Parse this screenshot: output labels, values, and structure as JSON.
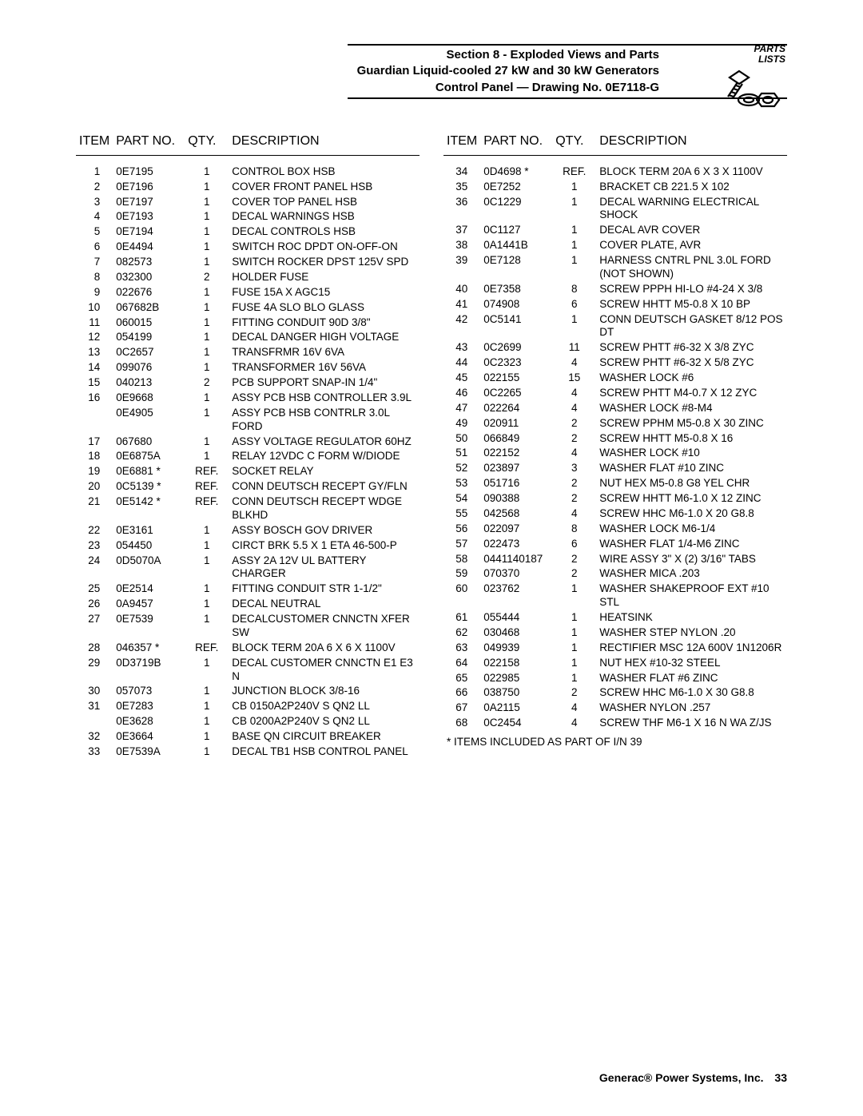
{
  "header": {
    "section": "Section 8 - Exploded Views and Parts",
    "product": "Guardian Liquid-cooled 27 kW and 30 kW Generators",
    "drawing": "Control Panel — Drawing No. 0E7118-G",
    "icon_line1": "PARTS",
    "icon_line2": "LISTS"
  },
  "columns": {
    "item": "ITEM",
    "part": "PART NO.",
    "qty": "QTY.",
    "desc": "DESCRIPTION"
  },
  "left_rows": [
    {
      "item": "1",
      "part": "0E7195",
      "qty": "1",
      "desc": "CONTROL BOX HSB"
    },
    {
      "item": "2",
      "part": "0E7196",
      "qty": "1",
      "desc": "COVER FRONT PANEL HSB"
    },
    {
      "item": "3",
      "part": "0E7197",
      "qty": "1",
      "desc": "COVER TOP PANEL HSB"
    },
    {
      "item": "4",
      "part": "0E7193",
      "qty": "1",
      "desc": "DECAL WARNINGS HSB"
    },
    {
      "item": "5",
      "part": "0E7194",
      "qty": "1",
      "desc": "DECAL CONTROLS HSB"
    },
    {
      "item": "6",
      "part": "0E4494",
      "qty": "1",
      "desc": "SWITCH ROC DPDT ON-OFF-ON"
    },
    {
      "item": "7",
      "part": "082573",
      "qty": "1",
      "desc": "SWITCH ROCKER DPST 125V SPD"
    },
    {
      "item": "8",
      "part": "032300",
      "qty": "2",
      "desc": "HOLDER FUSE"
    },
    {
      "item": "9",
      "part": "022676",
      "qty": "1",
      "desc": "FUSE 15A X AGC15"
    },
    {
      "item": "10",
      "part": "067682B",
      "qty": "1",
      "desc": "FUSE 4A SLO BLO GLASS"
    },
    {
      "item": "11",
      "part": "060015",
      "qty": "1",
      "desc": "FITTING CONDUIT 90D 3/8\""
    },
    {
      "item": "12",
      "part": "054199",
      "qty": "1",
      "desc": "DECAL DANGER HIGH VOLTAGE"
    },
    {
      "item": "13",
      "part": "0C2657",
      "qty": "1",
      "desc": "TRANSFRMR 16V 6VA"
    },
    {
      "item": "14",
      "part": "099076",
      "qty": "1",
      "desc": "TRANSFORMER 16V 56VA"
    },
    {
      "item": "15",
      "part": "040213",
      "qty": "2",
      "desc": "PCB SUPPORT SNAP-IN 1/4\""
    },
    {
      "item": "16",
      "part": "0E9668",
      "qty": "1",
      "desc": "ASSY PCB HSB CONTROLLER 3.9L"
    },
    {
      "item": "",
      "part": "0E4905",
      "qty": "1",
      "desc": "ASSY PCB HSB CONTRLR 3.0L FORD"
    },
    {
      "item": "17",
      "part": "067680",
      "qty": "1",
      "desc": "ASSY VOLTAGE REGULATOR 60HZ"
    },
    {
      "item": "18",
      "part": "0E6875A",
      "qty": "1",
      "desc": "RELAY 12VDC C FORM W/DIODE"
    },
    {
      "item": "19",
      "part": "0E6881 *",
      "qty": "REF.",
      "desc": "SOCKET RELAY"
    },
    {
      "item": "20",
      "part": "0C5139 *",
      "qty": "REF.",
      "desc": "CONN DEUTSCH RECEPT GY/FLN"
    },
    {
      "item": "21",
      "part": "0E5142 *",
      "qty": "REF.",
      "desc": "CONN DEUTSCH RECEPT WDGE BLKHD"
    },
    {
      "item": "22",
      "part": "0E3161",
      "qty": "1",
      "desc": "ASSY BOSCH GOV DRIVER"
    },
    {
      "item": "23",
      "part": "054450",
      "qty": "1",
      "desc": "CIRCT BRK 5.5 X 1 ETA 46-500-P"
    },
    {
      "item": "24",
      "part": "0D5070A",
      "qty": "1",
      "desc": "ASSY 2A 12V UL BATTERY CHARGER"
    },
    {
      "item": "25",
      "part": "0E2514",
      "qty": "1",
      "desc": "FITTING CONDUIT STR 1-1/2\""
    },
    {
      "item": "26",
      "part": "0A9457",
      "qty": "1",
      "desc": "DECAL NEUTRAL"
    },
    {
      "item": "27",
      "part": "0E7539",
      "qty": "1",
      "desc": "DECALCUSTOMER CNNCTN XFER SW"
    },
    {
      "item": "28",
      "part": "046357 *",
      "qty": "REF.",
      "desc": "BLOCK TERM 20A 6 X 6 X 1100V"
    },
    {
      "item": "29",
      "part": "0D3719B",
      "qty": "1",
      "desc": "DECAL CUSTOMER CNNCTN E1 E3 N"
    },
    {
      "item": "30",
      "part": "057073",
      "qty": "1",
      "desc": "JUNCTION BLOCK 3/8-16"
    },
    {
      "item": "31",
      "part": "0E7283",
      "qty": "1",
      "desc": "CB 0150A2P240V S QN2 LL"
    },
    {
      "item": "",
      "part": "0E3628",
      "qty": "1",
      "desc": "CB 0200A2P240V S QN2 LL"
    },
    {
      "item": "32",
      "part": "0E3664",
      "qty": "1",
      "desc": "BASE QN CIRCUIT BREAKER"
    },
    {
      "item": "33",
      "part": "0E7539A",
      "qty": "1",
      "desc": "DECAL TB1 HSB CONTROL PANEL"
    }
  ],
  "right_rows": [
    {
      "item": "34",
      "part": "0D4698 *",
      "qty": "REF.",
      "desc": "BLOCK TERM 20A 6 X 3 X 1100V"
    },
    {
      "item": "35",
      "part": "0E7252",
      "qty": "1",
      "desc": "BRACKET CB 221.5 X 102"
    },
    {
      "item": "36",
      "part": "0C1229",
      "qty": "1",
      "desc": "DECAL WARNING ELECTRICAL SHOCK"
    },
    {
      "item": "37",
      "part": "0C1127",
      "qty": "1",
      "desc": "DECAL AVR COVER"
    },
    {
      "item": "38",
      "part": "0A1441B",
      "qty": "1",
      "desc": "COVER PLATE, AVR"
    },
    {
      "item": "39",
      "part": "0E7128",
      "qty": "1",
      "desc": "HARNESS CNTRL PNL 3.0L FORD (NOT SHOWN)"
    },
    {
      "item": "40",
      "part": "0E7358",
      "qty": "8",
      "desc": "SCREW PPPH HI-LO #4-24 X 3/8"
    },
    {
      "item": "41",
      "part": "074908",
      "qty": "6",
      "desc": "SCREW HHTT M5-0.8 X 10 BP"
    },
    {
      "item": "42",
      "part": "0C5141",
      "qty": "1",
      "desc": "CONN DEUTSCH GASKET 8/12 POS DT"
    },
    {
      "item": "43",
      "part": "0C2699",
      "qty": "11",
      "desc": "SCREW PHTT #6-32 X 3/8 ZYC"
    },
    {
      "item": "44",
      "part": "0C2323",
      "qty": "4",
      "desc": "SCREW PHTT #6-32 X 5/8 ZYC"
    },
    {
      "item": "45",
      "part": "022155",
      "qty": "15",
      "desc": "WASHER LOCK #6"
    },
    {
      "item": "46",
      "part": "0C2265",
      "qty": "4",
      "desc": "SCREW PHTT M4-0.7 X 12 ZYC"
    },
    {
      "item": "47",
      "part": "022264",
      "qty": "4",
      "desc": "WASHER LOCK #8-M4"
    },
    {
      "item": "49",
      "part": "020911",
      "qty": "2",
      "desc": "SCREW PPHM M5-0.8 X 30 ZINC"
    },
    {
      "item": "50",
      "part": "066849",
      "qty": "2",
      "desc": "SCREW HHTT M5-0.8 X 16"
    },
    {
      "item": "51",
      "part": "022152",
      "qty": "4",
      "desc": "WASHER LOCK #10"
    },
    {
      "item": "52",
      "part": "023897",
      "qty": "3",
      "desc": "WASHER FLAT #10 ZINC"
    },
    {
      "item": "53",
      "part": "051716",
      "qty": "2",
      "desc": "NUT HEX M5-0.8 G8 YEL CHR"
    },
    {
      "item": "54",
      "part": "090388",
      "qty": "2",
      "desc": "SCREW HHTT M6-1.0 X 12 ZINC"
    },
    {
      "item": "55",
      "part": "042568",
      "qty": "4",
      "desc": "SCREW HHC M6-1.0 X 20 G8.8"
    },
    {
      "item": "56",
      "part": "022097",
      "qty": "8",
      "desc": "WASHER LOCK M6-1/4"
    },
    {
      "item": "57",
      "part": "022473",
      "qty": "6",
      "desc": "WASHER FLAT 1/4-M6 ZINC"
    },
    {
      "item": "58",
      "part": "0441140187",
      "qty": "2",
      "desc": "WIRE ASSY 3\" X (2) 3/16\" TABS"
    },
    {
      "item": "59",
      "part": "070370",
      "qty": "2",
      "desc": "WASHER MICA .203"
    },
    {
      "item": "60",
      "part": "023762",
      "qty": "1",
      "desc": "WASHER SHAKEPROOF EXT #10 STL"
    },
    {
      "item": "61",
      "part": "055444",
      "qty": "1",
      "desc": "HEATSINK"
    },
    {
      "item": "62",
      "part": "030468",
      "qty": "1",
      "desc": "WASHER STEP NYLON .20"
    },
    {
      "item": "63",
      "part": "049939",
      "qty": "1",
      "desc": "RECTIFIER MSC 12A 600V 1N1206R"
    },
    {
      "item": "64",
      "part": "022158",
      "qty": "1",
      "desc": "NUT HEX #10-32 STEEL"
    },
    {
      "item": "65",
      "part": "022985",
      "qty": "1",
      "desc": "WASHER FLAT #6 ZINC"
    },
    {
      "item": "66",
      "part": "038750",
      "qty": "2",
      "desc": "SCREW HHC M6-1.0 X 30 G8.8"
    },
    {
      "item": "67",
      "part": "0A2115",
      "qty": "4",
      "desc": "WASHER NYLON .257"
    },
    {
      "item": "68",
      "part": "0C2454",
      "qty": "4",
      "desc": "SCREW THF M6-1 X 16 N WA Z/JS"
    }
  ],
  "footnote": "* ITEMS INCLUDED AS PART OF I/N 39",
  "footer": {
    "company": "Generac® Power Systems, Inc.",
    "page": "33"
  }
}
